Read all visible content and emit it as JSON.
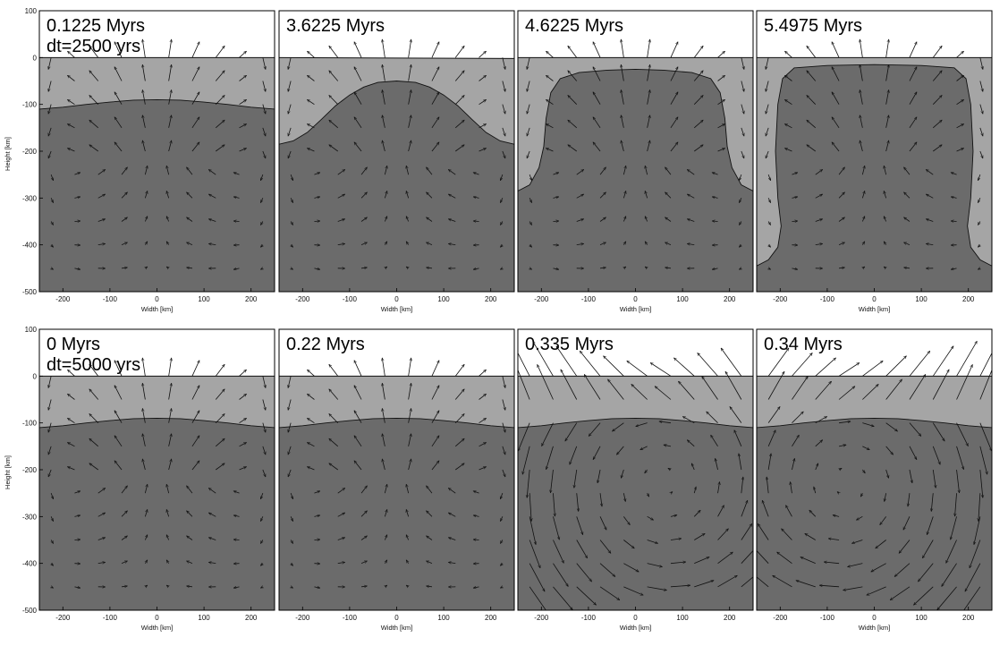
{
  "figure": {
    "xlabel": "Width [km]",
    "ylabel": "Height [km]",
    "colors": {
      "air": "#ffffff",
      "upper_layer": "#a5a5a5",
      "lower_layer": "#6b6b6b",
      "interface_line": "#111111",
      "arrow": "#111111",
      "frame": "#000000"
    }
  },
  "chart_data": [
    {
      "type": "other",
      "label_lines": [
        "0.1225 Myrs",
        "dt=2500 yrs"
      ],
      "xlim": [
        -250,
        250
      ],
      "ylim": [
        -500,
        100
      ],
      "xticks": [
        -200,
        -100,
        0,
        100,
        200
      ],
      "yticks": [
        100,
        0,
        -100,
        -200,
        -300,
        -400,
        -500
      ],
      "surface": [
        [
          -250,
          0
        ],
        [
          250,
          0
        ]
      ],
      "interface": [
        [
          -250,
          -110
        ],
        [
          -200,
          -106
        ],
        [
          -150,
          -100
        ],
        [
          -100,
          -95
        ],
        [
          -50,
          -91
        ],
        [
          0,
          -90
        ],
        [
          50,
          -91
        ],
        [
          100,
          -95
        ],
        [
          150,
          -100
        ],
        [
          200,
          -106
        ],
        [
          250,
          -110
        ]
      ],
      "flow_pattern": "upwelling"
    },
    {
      "type": "other",
      "label_lines": [
        "3.6225 Myrs"
      ],
      "xlim": [
        -250,
        250
      ],
      "ylim": [
        -500,
        100
      ],
      "xticks": [
        -200,
        -100,
        0,
        100,
        200
      ],
      "yticks": [],
      "surface": [
        [
          -250,
          0
        ],
        [
          250,
          -2
        ]
      ],
      "interface": [
        [
          -250,
          -185
        ],
        [
          -220,
          -178
        ],
        [
          -190,
          -160
        ],
        [
          -160,
          -132
        ],
        [
          -130,
          -103
        ],
        [
          -100,
          -80
        ],
        [
          -70,
          -63
        ],
        [
          -40,
          -53
        ],
        [
          0,
          -50
        ],
        [
          40,
          -53
        ],
        [
          70,
          -63
        ],
        [
          100,
          -80
        ],
        [
          130,
          -103
        ],
        [
          160,
          -132
        ],
        [
          190,
          -160
        ],
        [
          220,
          -178
        ],
        [
          250,
          -185
        ]
      ],
      "flow_pattern": "upwelling"
    },
    {
      "type": "other",
      "label_lines": [
        "4.6225 Myrs"
      ],
      "xlim": [
        -250,
        250
      ],
      "ylim": [
        -500,
        100
      ],
      "xticks": [
        -200,
        -100,
        0,
        100,
        200
      ],
      "yticks": [],
      "surface": [
        [
          -250,
          0
        ],
        [
          250,
          0
        ]
      ],
      "interface": [
        [
          -250,
          -285
        ],
        [
          -225,
          -272
        ],
        [
          -205,
          -235
        ],
        [
          -195,
          -190
        ],
        [
          -190,
          -130
        ],
        [
          -180,
          -75
        ],
        [
          -160,
          -45
        ],
        [
          -120,
          -32
        ],
        [
          -60,
          -27
        ],
        [
          0,
          -25
        ],
        [
          60,
          -27
        ],
        [
          120,
          -32
        ],
        [
          160,
          -45
        ],
        [
          180,
          -75
        ],
        [
          190,
          -130
        ],
        [
          195,
          -190
        ],
        [
          205,
          -235
        ],
        [
          225,
          -272
        ],
        [
          250,
          -285
        ]
      ],
      "flow_pattern": "upwelling"
    },
    {
      "type": "other",
      "label_lines": [
        "5.4975 Myrs"
      ],
      "xlim": [
        -250,
        250
      ],
      "ylim": [
        -500,
        100
      ],
      "xticks": [
        -200,
        -100,
        0,
        100,
        200
      ],
      "yticks": [],
      "surface": [
        [
          -250,
          0
        ],
        [
          250,
          0
        ]
      ],
      "interface": [
        [
          -250,
          -445
        ],
        [
          -225,
          -432
        ],
        [
          -205,
          -405
        ],
        [
          -198,
          -360
        ],
        [
          -205,
          -300
        ],
        [
          -210,
          -200
        ],
        [
          -205,
          -100
        ],
        [
          -195,
          -45
        ],
        [
          -170,
          -22
        ],
        [
          -100,
          -17
        ],
        [
          0,
          -15
        ],
        [
          100,
          -17
        ],
        [
          170,
          -22
        ],
        [
          195,
          -45
        ],
        [
          205,
          -100
        ],
        [
          210,
          -200
        ],
        [
          205,
          -300
        ],
        [
          198,
          -360
        ],
        [
          205,
          -405
        ],
        [
          225,
          -432
        ],
        [
          250,
          -445
        ]
      ],
      "flow_pattern": "upwelling"
    },
    {
      "type": "other",
      "label_lines": [
        "0 Myrs",
        "dt=5000 yrs"
      ],
      "xlim": [
        -250,
        250
      ],
      "ylim": [
        -500,
        100
      ],
      "xticks": [
        -200,
        -100,
        0,
        100,
        200
      ],
      "yticks": [
        100,
        0,
        -100,
        -200,
        -300,
        -400,
        -500
      ],
      "surface": [
        [
          -250,
          0
        ],
        [
          250,
          0
        ]
      ],
      "interface": [
        [
          -250,
          -110
        ],
        [
          -200,
          -106
        ],
        [
          -150,
          -100
        ],
        [
          -100,
          -95
        ],
        [
          -50,
          -91
        ],
        [
          0,
          -90
        ],
        [
          50,
          -91
        ],
        [
          100,
          -95
        ],
        [
          150,
          -100
        ],
        [
          200,
          -106
        ],
        [
          250,
          -110
        ]
      ],
      "flow_pattern": "upwelling"
    },
    {
      "type": "other",
      "label_lines": [
        "0.22 Myrs"
      ],
      "xlim": [
        -250,
        250
      ],
      "ylim": [
        -500,
        100
      ],
      "xticks": [
        -200,
        -100,
        0,
        100,
        200
      ],
      "yticks": [],
      "surface": [
        [
          -250,
          0
        ],
        [
          250,
          0
        ]
      ],
      "interface": [
        [
          -250,
          -110
        ],
        [
          -200,
          -106
        ],
        [
          -150,
          -100
        ],
        [
          -100,
          -95
        ],
        [
          -50,
          -91
        ],
        [
          0,
          -90
        ],
        [
          50,
          -91
        ],
        [
          100,
          -95
        ],
        [
          150,
          -100
        ],
        [
          200,
          -106
        ],
        [
          250,
          -110
        ]
      ],
      "flow_pattern": "upwelling"
    },
    {
      "type": "other",
      "label_lines": [
        "0.335 Myrs"
      ],
      "xlim": [
        -250,
        250
      ],
      "ylim": [
        -500,
        100
      ],
      "xticks": [
        -200,
        -100,
        0,
        100,
        200
      ],
      "yticks": [],
      "surface": [
        [
          -250,
          0
        ],
        [
          250,
          0
        ]
      ],
      "interface": [
        [
          -250,
          -110
        ],
        [
          -200,
          -106
        ],
        [
          -150,
          -100
        ],
        [
          -100,
          -95
        ],
        [
          -50,
          -91
        ],
        [
          0,
          -90
        ],
        [
          50,
          -91
        ],
        [
          100,
          -95
        ],
        [
          150,
          -100
        ],
        [
          200,
          -106
        ],
        [
          250,
          -110
        ]
      ],
      "flow_pattern": "cell-right"
    },
    {
      "type": "other",
      "label_lines": [
        "0.34 Myrs"
      ],
      "xlim": [
        -250,
        250
      ],
      "ylim": [
        -500,
        100
      ],
      "xticks": [
        -200,
        -100,
        0,
        100,
        200
      ],
      "yticks": [],
      "surface": [
        [
          -250,
          0
        ],
        [
          250,
          0
        ]
      ],
      "interface": [
        [
          -250,
          -110
        ],
        [
          -200,
          -106
        ],
        [
          -150,
          -100
        ],
        [
          -100,
          -95
        ],
        [
          -50,
          -91
        ],
        [
          0,
          -90
        ],
        [
          50,
          -91
        ],
        [
          100,
          -95
        ],
        [
          150,
          -100
        ],
        [
          200,
          -106
        ],
        [
          250,
          -110
        ]
      ],
      "flow_pattern": "cell-left"
    }
  ]
}
